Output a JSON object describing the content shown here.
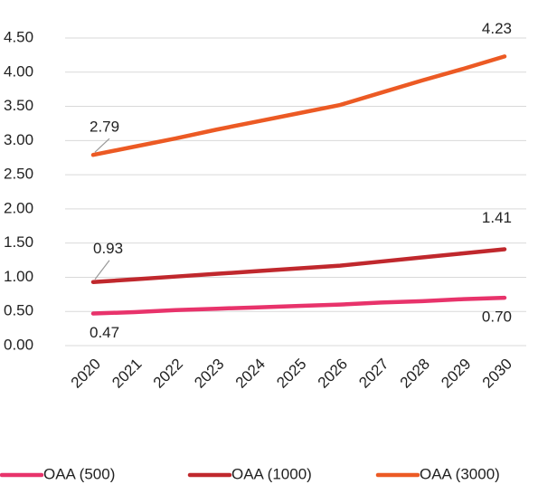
{
  "chart_data": {
    "type": "line",
    "categories": [
      "2020",
      "2021",
      "2022",
      "2023",
      "2024",
      "2025",
      "2026",
      "2027",
      "2028",
      "2029",
      "2030"
    ],
    "series": [
      {
        "name": "OAA (500)",
        "color": "#e8336b",
        "values": [
          0.47,
          0.49,
          0.52,
          0.54,
          0.56,
          0.58,
          0.6,
          0.63,
          0.65,
          0.68,
          0.7
        ],
        "value_labels": [
          "0.47",
          null,
          null,
          null,
          null,
          null,
          null,
          null,
          null,
          null,
          "0.70"
        ]
      },
      {
        "name": "OAA (1000)",
        "color": "#c0282d",
        "values": [
          0.93,
          0.97,
          1.01,
          1.05,
          1.09,
          1.13,
          1.17,
          1.23,
          1.29,
          1.35,
          1.41
        ],
        "value_labels": [
          "0.93",
          null,
          null,
          null,
          null,
          null,
          null,
          null,
          null,
          null,
          "1.41"
        ]
      },
      {
        "name": "OAA (3000)",
        "color": "#ec5a24",
        "values": [
          2.79,
          2.91,
          3.03,
          3.16,
          3.28,
          3.4,
          3.52,
          3.7,
          3.88,
          4.05,
          4.23
        ],
        "value_labels": [
          "2.79",
          null,
          null,
          null,
          null,
          null,
          null,
          null,
          null,
          null,
          "4.23"
        ]
      }
    ],
    "ylim": [
      0,
      4.5
    ],
    "yticks": [
      {
        "value": 0,
        "label": "0.00"
      },
      {
        "value": 0.5,
        "label": "0.50"
      },
      {
        "value": 1,
        "label": "1.00"
      },
      {
        "value": 1.5,
        "label": "1.50"
      },
      {
        "value": 2,
        "label": "2.00"
      },
      {
        "value": 2.5,
        "label": "2.50"
      },
      {
        "value": 3,
        "label": "3.00"
      },
      {
        "value": 3.5,
        "label": "3.50"
      },
      {
        "value": 4,
        "label": "4.00"
      },
      {
        "value": 4.5,
        "label": "4.50"
      }
    ],
    "grid": true,
    "legend": "bottom"
  }
}
